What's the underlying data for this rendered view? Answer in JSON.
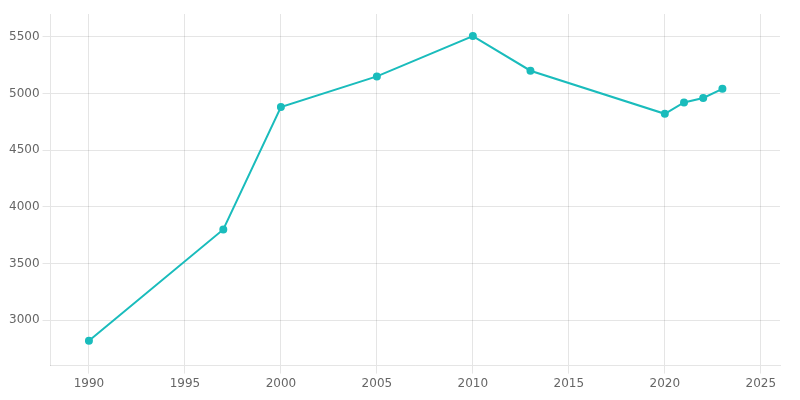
{
  "chart_data": {
    "type": "line",
    "x": [
      1990,
      1997,
      2000,
      2005,
      2010,
      2013,
      2020,
      2021,
      2022,
      2023
    ],
    "values": [
      2820,
      3800,
      4880,
      5150,
      5505,
      5200,
      4820,
      4920,
      4960,
      5040
    ],
    "color": "#1abcbc",
    "marker": "circle",
    "xlim": [
      1988,
      2026
    ],
    "xticks": [
      1990,
      1995,
      2000,
      2005,
      2010,
      2015,
      2020,
      2025
    ],
    "ylim": [
      2600,
      5700
    ],
    "yticks": [
      3000,
      3500,
      4000,
      4500,
      5000,
      5500
    ],
    "grid": true
  }
}
